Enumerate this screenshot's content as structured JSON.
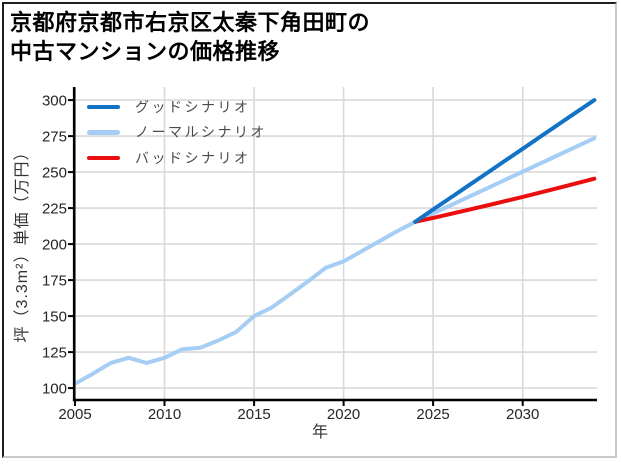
{
  "title": {
    "line1": "京都府京都市右京区太秦下角田町の",
    "line2": "中古マンションの価格推移"
  },
  "frame": {
    "border_top_left": "#1f1f1f",
    "border_bottom_right": "#c9c9c9"
  },
  "chart_data": {
    "type": "line",
    "title": "京都府京都市右京区太秦下角田町の中古マンションの価格推移",
    "xlabel": "年",
    "ylabel": "坪（3.3m²）単価（万円）",
    "xlim": [
      2005,
      2034.15
    ],
    "ylim": [
      91.7,
      309.1
    ],
    "x_ticks": [
      2005,
      2010,
      2015,
      2020,
      2025,
      2030
    ],
    "y_ticks": [
      100,
      125,
      150,
      175,
      200,
      225,
      250,
      275,
      300
    ],
    "grid": true,
    "legend_position": "top-left-inside",
    "colors": {
      "grid": "#d9d9d9",
      "axis": "#000000",
      "tick_text": "#262626",
      "legend_text": "#4a4a4a"
    },
    "draw_order": [
      "normal",
      "bad",
      "good"
    ],
    "series": [
      {
        "id": "good",
        "name": "グッドシナリオ",
        "color": "#1272c6",
        "x": [
          2024,
          2025,
          2026,
          2027,
          2028,
          2029,
          2030,
          2031,
          2032,
          2033,
          2034
        ],
        "y": [
          215.5,
          224.0,
          232.4,
          240.9,
          249.3,
          257.8,
          266.2,
          274.7,
          283.1,
          291.6,
          300
        ]
      },
      {
        "id": "normal",
        "name": "ノーマルシナリオ",
        "color": "#a6cdf3",
        "x": [
          2005,
          2006,
          2007,
          2008,
          2009,
          2010,
          2011,
          2012,
          2013,
          2014,
          2015,
          2016,
          2017,
          2018,
          2019,
          2020,
          2021,
          2022,
          2023,
          2024,
          2025,
          2026,
          2027,
          2028,
          2029,
          2030,
          2031,
          2032,
          2033,
          2034
        ],
        "y": [
          103,
          110,
          117.5,
          121,
          117.5,
          121,
          127,
          128,
          133,
          139,
          150,
          156,
          165,
          174,
          183.5,
          188,
          195,
          202,
          209,
          215.5,
          221.3,
          227.1,
          232.9,
          238.7,
          244.5,
          250.3,
          256.1,
          261.9,
          267.7,
          273.5
        ]
      },
      {
        "id": "bad",
        "name": "バッドシナリオ",
        "color": "#ea0e0e",
        "x": [
          2024,
          2025,
          2026,
          2027,
          2028,
          2029,
          2030,
          2031,
          2032,
          2033,
          2034
        ],
        "y": [
          215.5,
          218.2,
          221.0,
          223.9,
          226.8,
          229.8,
          232.8,
          235.9,
          239.0,
          242.2,
          245.4
        ]
      }
    ]
  }
}
